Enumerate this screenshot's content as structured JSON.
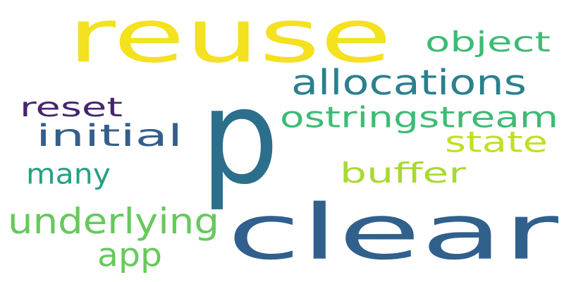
{
  "word_cloud": {
    "words": [
      {
        "id": "reuse",
        "text": "reuse",
        "color": "#f4e11f"
      },
      {
        "id": "p",
        "text": "p",
        "color": "#2b6f8c"
      },
      {
        "id": "clear",
        "text": "clear",
        "color": "#31608d"
      },
      {
        "id": "object",
        "text": "object",
        "color": "#3dbb73"
      },
      {
        "id": "allocations",
        "text": "allocations",
        "color": "#2a808e"
      },
      {
        "id": "reset",
        "text": "reset",
        "color": "#45256f"
      },
      {
        "id": "ostringstream",
        "text": "ostringstream",
        "color": "#3ebb75"
      },
      {
        "id": "initial",
        "text": "initial",
        "color": "#355e8b"
      },
      {
        "id": "state",
        "text": "state",
        "color": "#bfe022"
      },
      {
        "id": "buffer",
        "text": "buffer",
        "color": "#a9d932"
      },
      {
        "id": "many",
        "text": "many",
        "color": "#25a183"
      },
      {
        "id": "underlying",
        "text": "underlying",
        "color": "#66c95c"
      },
      {
        "id": "app",
        "text": "app",
        "color": "#66c95c"
      }
    ]
  }
}
